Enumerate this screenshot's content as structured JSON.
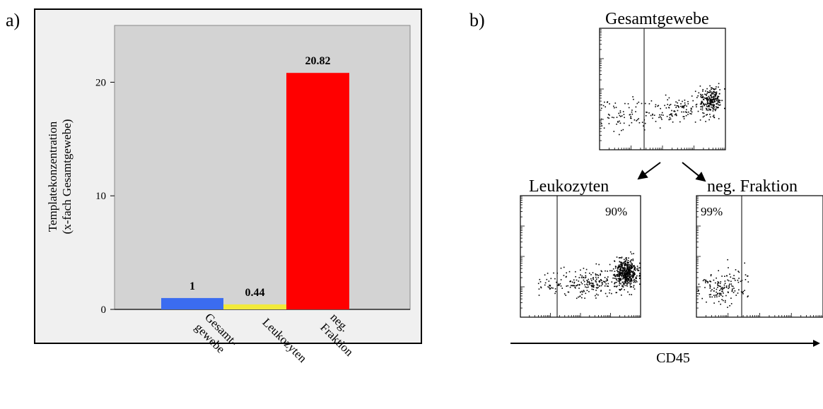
{
  "panel_a": {
    "letter": "a)"
  },
  "panel_b": {
    "letter": "b)"
  },
  "chart_data": [
    {
      "type": "bar",
      "ylabel_line1": "Templatekonzentration",
      "ylabel_line2": "(x-fach Gesamtgewebe)",
      "ylim": [
        0,
        25
      ],
      "yticks": [
        "0",
        "10",
        "20"
      ],
      "grid": false,
      "categories": [
        {
          "lines": [
            "Gesamt-",
            "gewebe"
          ]
        },
        {
          "lines": [
            "Leukozyten"
          ]
        },
        {
          "lines": [
            "neg.",
            "Fraktion"
          ]
        }
      ],
      "values": [
        1,
        0.44,
        20.82
      ],
      "value_labels": [
        "1",
        "0.44",
        "20.82"
      ],
      "colors": [
        "#3b6cf0",
        "#f2ea3a",
        "#ff0000"
      ],
      "plot_bg": "#d3d3d3"
    },
    {
      "type": "scatter",
      "panels": [
        {
          "title": "Gesamtgewebe",
          "percent": ""
        },
        {
          "title": "Leukozyten",
          "percent": "90%"
        },
        {
          "title": "neg. Fraktion",
          "percent": "99%"
        }
      ],
      "xlabel": "CD45"
    }
  ]
}
